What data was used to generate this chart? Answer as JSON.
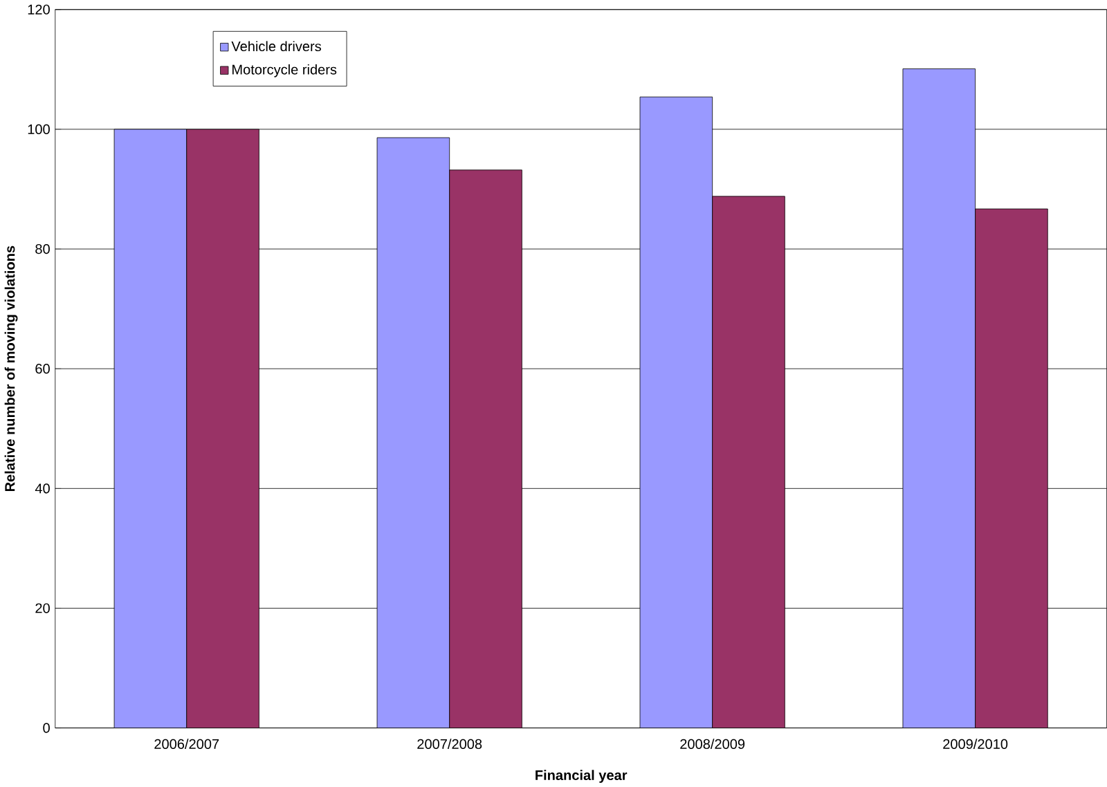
{
  "chart_data": {
    "type": "bar",
    "xlabel": "Financial year",
    "ylabel": "Relative number of moving violations",
    "categories": [
      "2006/2007",
      "2007/2008",
      "2008/2009",
      "2009/2010"
    ],
    "series": [
      {
        "name": "Vehicle drivers",
        "color": "#9999ff",
        "values": [
          100,
          98.6,
          105.4,
          110.1
        ]
      },
      {
        "name": "Motorcycle riders",
        "color": "#993366",
        "values": [
          100,
          93.2,
          88.8,
          86.7
        ]
      }
    ],
    "ylim": [
      0,
      120
    ],
    "yticks": [
      0,
      20,
      40,
      60,
      80,
      100,
      120
    ],
    "grid": "y",
    "legend": "top left"
  }
}
